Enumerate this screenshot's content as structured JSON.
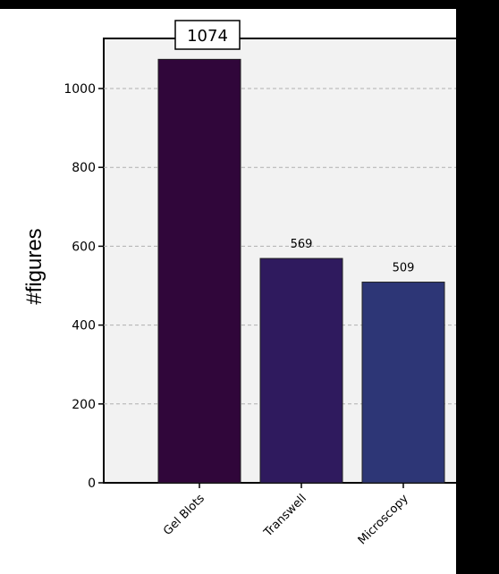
{
  "chart_data": {
    "type": "bar",
    "categories": [
      "Gel Blots",
      "Transwell",
      "Microscopy"
    ],
    "values": [
      1074,
      569,
      509
    ],
    "value_labels": [
      "1074",
      "569",
      "509"
    ],
    "ylabel": "#figures",
    "ylim": [
      0,
      1100
    ],
    "yticks": [
      0,
      200,
      400,
      600,
      800,
      1000
    ],
    "grid": true,
    "bar_colors": [
      "#30063a",
      "#2f1a5e",
      "#2d3676"
    ],
    "plot_background": "#f2f2f2"
  }
}
